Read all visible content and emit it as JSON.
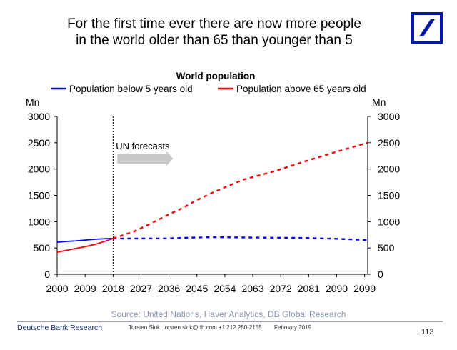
{
  "slide": {
    "title_line1": "For the first time ever there are now more people",
    "title_line2": "in the world older than 65 than younger than 5"
  },
  "logo": {
    "name": "Deutsche Bank logo",
    "color": "#0018a8"
  },
  "chart_data": {
    "type": "line",
    "title": "World population",
    "xlabel": "",
    "ylabel_left": "Mn",
    "ylabel_right": "Mn",
    "ylim": [
      0,
      3000
    ],
    "yticks": [
      0,
      500,
      1000,
      1500,
      2000,
      2500,
      3000
    ],
    "xlim": [
      2000,
      2100
    ],
    "xticks": [
      2000,
      2009,
      2018,
      2027,
      2036,
      2045,
      2054,
      2063,
      2072,
      2081,
      2090,
      2099
    ],
    "grid": false,
    "legend_position": "top",
    "forecast_start": 2018,
    "annotation": "UN forecasts",
    "series": [
      {
        "name": "Population below 5 years old",
        "color": "#0000ff",
        "historical": {
          "x": [
            2000,
            2003,
            2006,
            2009,
            2012,
            2015,
            2018
          ],
          "y": [
            610,
            625,
            635,
            650,
            665,
            675,
            680
          ]
        },
        "forecast": {
          "x": [
            2018,
            2025,
            2035,
            2045,
            2050,
            2060,
            2070,
            2080,
            2090,
            2100
          ],
          "y": [
            680,
            680,
            682,
            700,
            705,
            700,
            695,
            690,
            675,
            650
          ]
        }
      },
      {
        "name": "Population above 65 years old",
        "color": "#ff0000",
        "historical": {
          "x": [
            2000,
            2003,
            2006,
            2009,
            2012,
            2015,
            2018
          ],
          "y": [
            420,
            455,
            490,
            525,
            565,
            620,
            680
          ]
        },
        "forecast": {
          "x": [
            2018,
            2025,
            2030,
            2035,
            2040,
            2045,
            2050,
            2055,
            2060,
            2070,
            2080,
            2090,
            2100
          ],
          "y": [
            680,
            820,
            960,
            1110,
            1250,
            1410,
            1550,
            1680,
            1800,
            1960,
            2150,
            2330,
            2500
          ]
        }
      }
    ]
  },
  "source": "Source: United Nations, Haver Analytics, DB Global Research",
  "footer": {
    "brand": "Deutsche Bank Research",
    "contact": "Torsten Slok, torsten.slok@db.com +1 212 250-2155",
    "date": "February 2019",
    "page": "113"
  }
}
